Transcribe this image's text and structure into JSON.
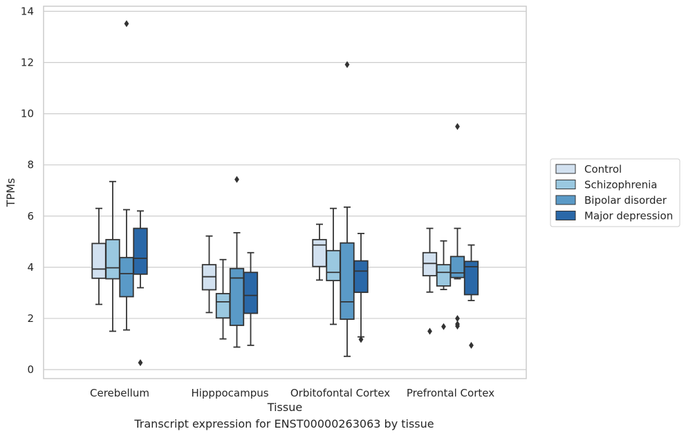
{
  "caption": "Transcript expression for ENST00000263063 by tissue",
  "chart_data": {
    "type": "box",
    "title": "",
    "xlabel": "Tissue",
    "ylabel": "TPMs",
    "ylim": [
      -0.35,
      14.2
    ],
    "yticks": [
      0,
      2,
      4,
      6,
      8,
      10,
      12,
      14
    ],
    "grid": "horizontal",
    "legend_position": "right",
    "categories": [
      "Cerebellum",
      "Hipppocampus",
      "Orbitofontal Cortex",
      "Prefrontal Cortex"
    ],
    "series": [
      {
        "name": "Control",
        "color": "#d2e1f0",
        "boxes": [
          {
            "whislo": 2.55,
            "q1": 3.57,
            "med": 3.93,
            "q3": 4.93,
            "whishi": 6.3,
            "fliers": []
          },
          {
            "whislo": 2.23,
            "q1": 3.12,
            "med": 3.63,
            "q3": 4.1,
            "whishi": 5.22,
            "fliers": []
          },
          {
            "whislo": 3.5,
            "q1": 4.03,
            "med": 4.87,
            "q3": 5.08,
            "whishi": 5.68,
            "fliers": []
          },
          {
            "whislo": 3.03,
            "q1": 3.67,
            "med": 4.15,
            "q3": 4.57,
            "whishi": 5.52,
            "fliers": [
              1.5
            ]
          }
        ]
      },
      {
        "name": "Schizophrenia",
        "color": "#9ac8e0",
        "boxes": [
          {
            "whislo": 1.5,
            "q1": 3.55,
            "med": 3.98,
            "q3": 5.08,
            "whishi": 7.35,
            "fliers": []
          },
          {
            "whislo": 1.2,
            "q1": 2.02,
            "med": 2.65,
            "q3": 2.97,
            "whishi": 4.3,
            "fliers": []
          },
          {
            "whislo": 1.77,
            "q1": 3.48,
            "med": 3.8,
            "q3": 4.65,
            "whishi": 6.3,
            "fliers": []
          },
          {
            "whislo": 3.13,
            "q1": 3.27,
            "med": 3.8,
            "q3": 4.1,
            "whishi": 5.03,
            "fliers": [
              1.68
            ]
          }
        ]
      },
      {
        "name": "Bipolar disorder",
        "color": "#5a9ac7",
        "boxes": [
          {
            "whislo": 1.55,
            "q1": 2.85,
            "med": 3.75,
            "q3": 4.38,
            "whishi": 6.25,
            "fliers": [
              13.52
            ]
          },
          {
            "whislo": 0.88,
            "q1": 1.73,
            "med": 3.58,
            "q3": 3.95,
            "whishi": 5.35,
            "fliers": [
              7.43
            ]
          },
          {
            "whislo": 0.52,
            "q1": 1.97,
            "med": 2.65,
            "q3": 4.95,
            "whishi": 6.35,
            "fliers": [
              11.92
            ]
          },
          {
            "whislo": 3.55,
            "q1": 3.6,
            "med": 3.78,
            "q3": 4.42,
            "whishi": 5.52,
            "fliers": [
              9.5,
              2.0,
              1.78,
              1.7
            ]
          }
        ]
      },
      {
        "name": "Major depression",
        "color": "#2a68a8",
        "boxes": [
          {
            "whislo": 3.2,
            "q1": 3.73,
            "med": 4.35,
            "q3": 5.52,
            "whishi": 6.2,
            "fliers": [
              0.27
            ]
          },
          {
            "whislo": 0.95,
            "q1": 2.2,
            "med": 2.9,
            "q3": 3.8,
            "whishi": 4.57,
            "fliers": []
          },
          {
            "whislo": 1.28,
            "q1": 3.02,
            "med": 3.85,
            "q3": 4.25,
            "whishi": 5.32,
            "fliers": [
              1.18
            ]
          },
          {
            "whislo": 2.7,
            "q1": 2.93,
            "med": 4.02,
            "q3": 4.23,
            "whishi": 4.87,
            "fliers": [
              0.95
            ]
          }
        ]
      }
    ]
  }
}
